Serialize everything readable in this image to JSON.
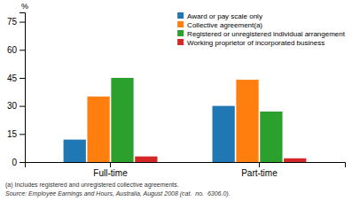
{
  "chart_data": {
    "type": "bar",
    "y_label": "%",
    "categories": [
      "Full-time",
      "Part-time"
    ],
    "series": [
      {
        "name": "Award or pay scale only",
        "values": [
          12,
          30
        ]
      },
      {
        "name": "Collective agreement(a)",
        "values": [
          35,
          44
        ]
      },
      {
        "name": "Registered or unregistered individual arrangement",
        "values": [
          45,
          27
        ]
      },
      {
        "name": "Working proprietor of incorporated business",
        "values": [
          3,
          2
        ]
      }
    ],
    "ylim": [
      0,
      80
    ],
    "yticks": [
      0,
      15,
      30,
      45,
      60,
      75
    ],
    "grid": false,
    "legend": "upper right",
    "annotations": [
      "(a) Includes registered and unregistered collective agreements.",
      "Source: Employee Earnings and Hours, Australia, August 2008 (cat.  no.  6306.0)."
    ]
  }
}
